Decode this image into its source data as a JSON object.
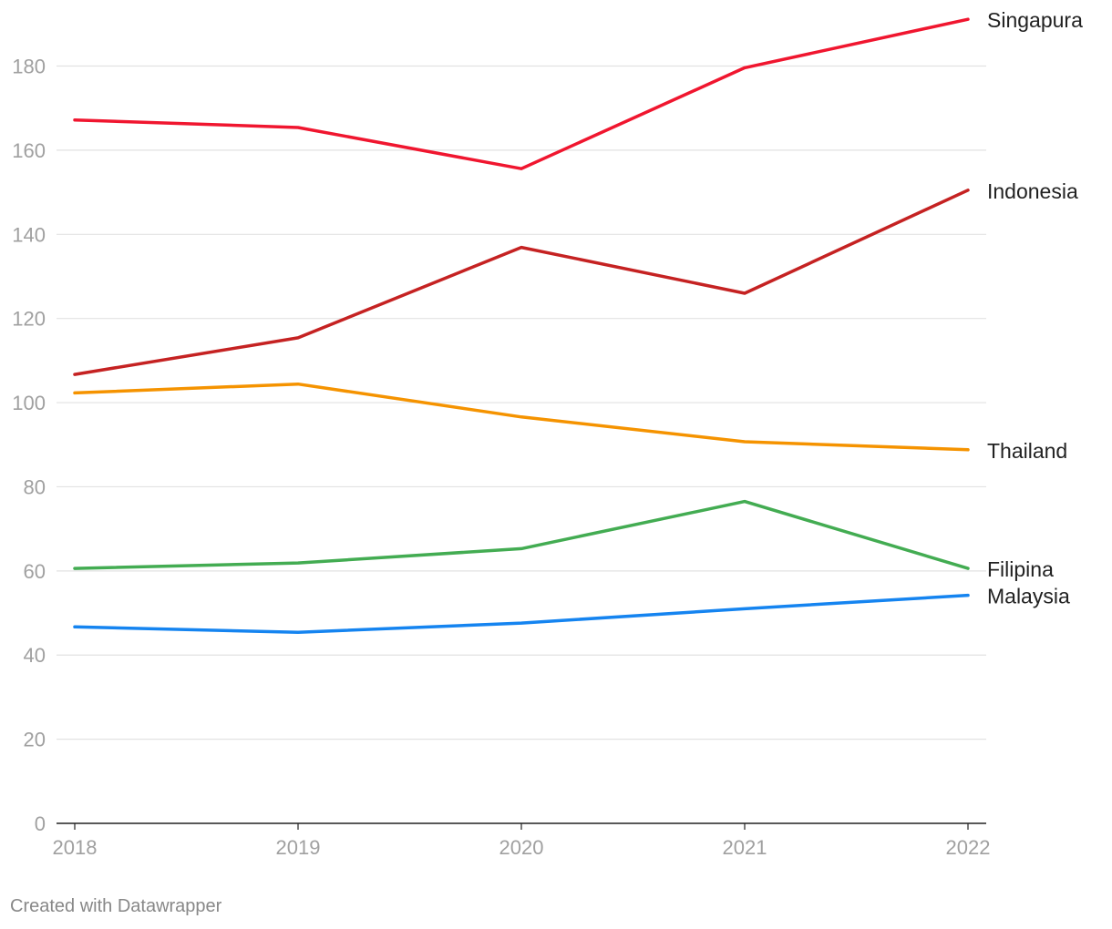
{
  "chart_data": {
    "type": "line",
    "title": "",
    "xlabel": "",
    "ylabel": "",
    "x": [
      "2018",
      "2019",
      "2020",
      "2021",
      "2022"
    ],
    "ylim": [
      0,
      195
    ],
    "yticks": [
      0,
      20,
      40,
      60,
      80,
      100,
      120,
      140,
      160,
      180
    ],
    "grid": true,
    "series": [
      {
        "name": "Singapura",
        "color": "#f0162f",
        "values": [
          167.2,
          165.4,
          155.6,
          179.6,
          191.1
        ]
      },
      {
        "name": "Indonesia",
        "color": "#c52222",
        "values": [
          106.7,
          115.4,
          136.9,
          126.0,
          150.5
        ]
      },
      {
        "name": "Thailand",
        "color": "#f59300",
        "values": [
          102.3,
          104.4,
          96.6,
          90.7,
          88.8
        ]
      },
      {
        "name": "Filipina",
        "color": "#43ac52",
        "values": [
          60.6,
          61.9,
          65.3,
          76.5,
          60.6
        ]
      },
      {
        "name": "Malaysia",
        "color": "#1584f0",
        "values": [
          46.7,
          45.4,
          47.6,
          51.0,
          54.2
        ]
      }
    ]
  },
  "footer": {
    "credit": "Created with Datawrapper"
  }
}
